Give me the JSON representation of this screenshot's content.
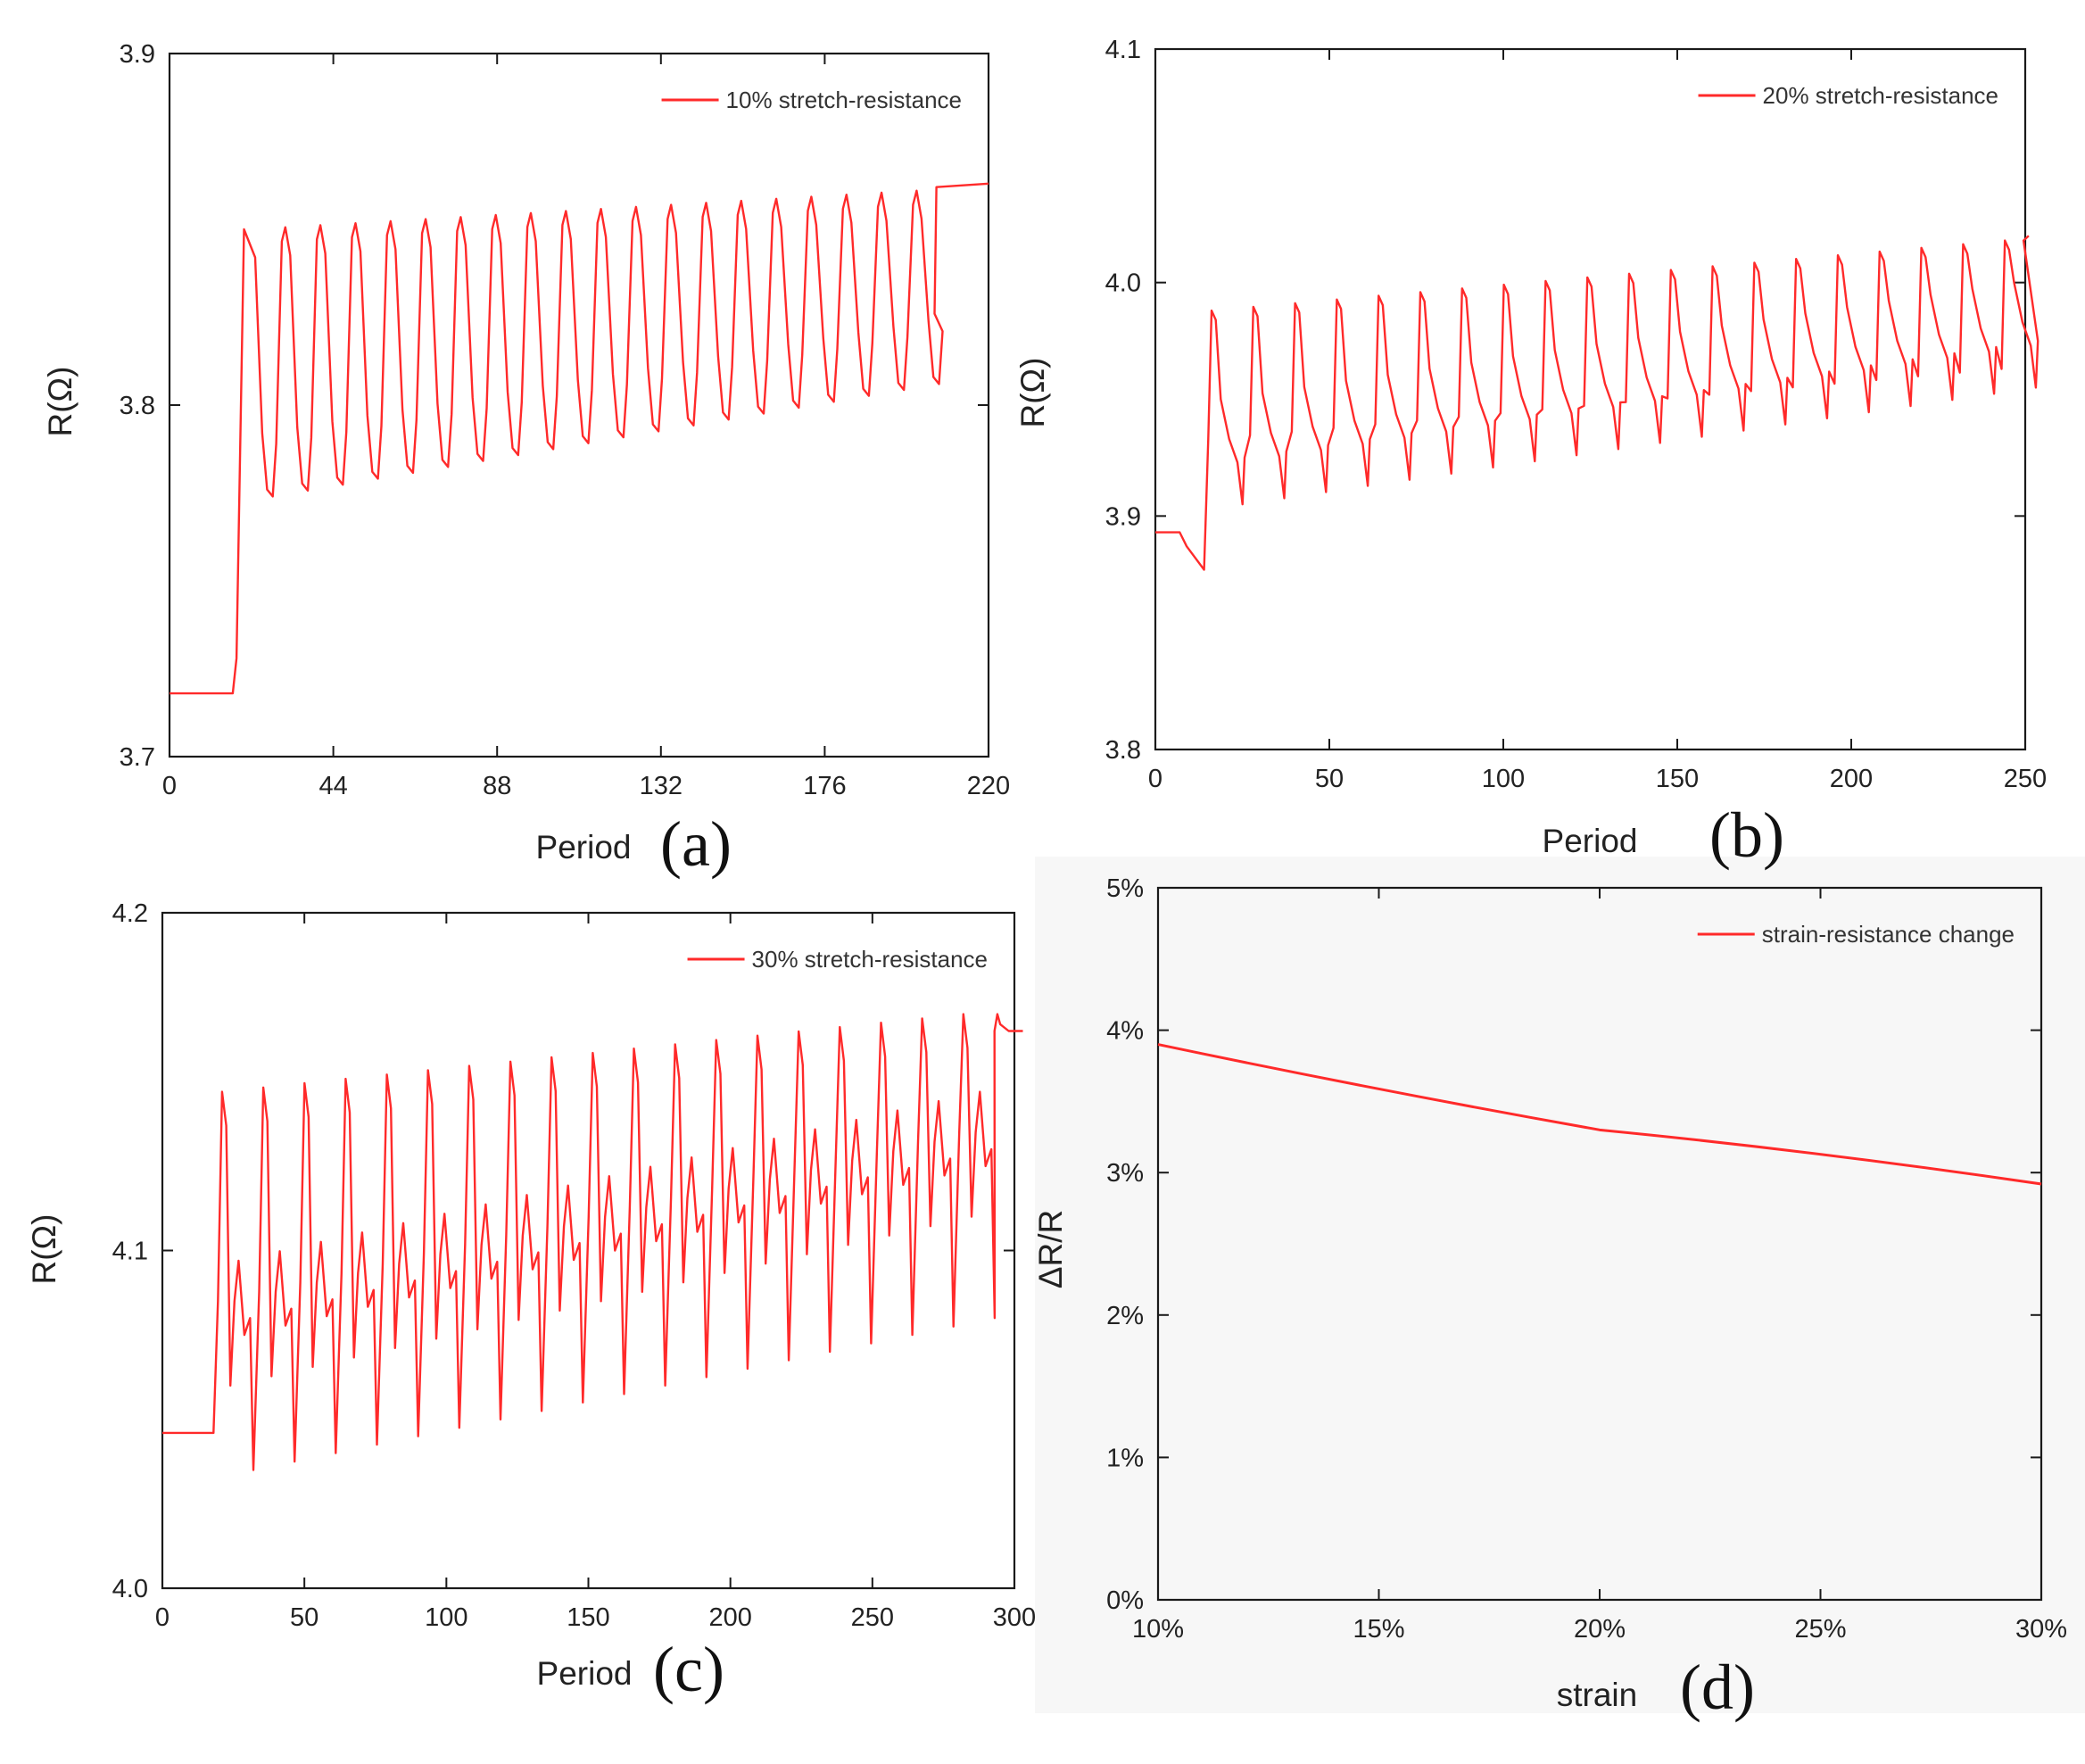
{
  "figure": {
    "accent_color": "#ff2a2a",
    "panels_text": [
      "(a)",
      "(b)",
      "(c)",
      "(d)"
    ]
  },
  "chart_data": [
    {
      "id": "a",
      "type": "line",
      "panel_label": "(a)",
      "xlabel": "Period",
      "ylabel": "R(Ω)",
      "xlim": [
        0,
        220
      ],
      "ylim": [
        3.7,
        3.9
      ],
      "xticks": [
        "0",
        "44",
        "88",
        "132",
        "176",
        "220"
      ],
      "yticks": [
        "3.7",
        "3.8",
        "3.9"
      ],
      "legend": "10% stretch-resistance",
      "legend_position": "top-right",
      "series": [
        {
          "name": "10% stretch-resistance",
          "color": "#ff2a2a",
          "signal": {
            "baseline": 3.718,
            "baseline_until": 17,
            "rise_end": 20,
            "cycles_start": 20,
            "period": 9.42,
            "cycles": 20,
            "low_start": 3.774,
            "low_end": 3.806,
            "high_start": 3.85,
            "high_end": 3.861,
            "plateau_after": 206,
            "plateau_value": 3.862,
            "plateau_end_value": 3.863
          }
        }
      ]
    },
    {
      "id": "b",
      "type": "line",
      "panel_label": "(b)",
      "xlabel": "Period",
      "ylabel": "R(Ω)",
      "xlim": [
        0,
        250
      ],
      "ylim": [
        3.8,
        4.1
      ],
      "xticks": [
        "0",
        "50",
        "100",
        "150",
        "200",
        "250"
      ],
      "yticks": [
        "3.8",
        "3.9",
        "4.0",
        "4.1"
      ],
      "legend": "20% stretch-resistance",
      "legend_position": "top-right",
      "series": [
        {
          "name": "20% stretch-resistance",
          "color": "#ff2a2a",
          "signal": {
            "baseline": 3.893,
            "baseline_until": 7,
            "dip_value": 3.877,
            "dip_until": 14,
            "cycles_start": 14,
            "period": 12,
            "cycles": 20,
            "low_start": 3.905,
            "low_end": 3.955,
            "high_start": 3.988,
            "high_end": 4.018,
            "end_x": 251,
            "end_value": 4.02
          }
        }
      ]
    },
    {
      "id": "c",
      "type": "line",
      "panel_label": "(c)",
      "xlabel": "Period",
      "ylabel": "R(Ω)",
      "xlim": [
        0,
        300
      ],
      "ylim": [
        4.0,
        4.2
      ],
      "xticks": [
        "0",
        "50",
        "100",
        "150",
        "200",
        "250",
        "300"
      ],
      "yticks": [
        "4.0",
        "4.1",
        "4.2"
      ],
      "legend": "30% stretch-resistance",
      "legend_position": "top-right",
      "series": [
        {
          "name": "30% stretch-resistance",
          "color": "#ff2a2a",
          "signal": {
            "baseline": 4.046,
            "baseline_until": 18,
            "cycles_start": 19,
            "period": 14.5,
            "cycles": 19,
            "low_start": 4.035,
            "low_end": 4.08,
            "high_start": 4.147,
            "high_end": 4.17,
            "mid_start": 4.105,
            "mid_end": 4.155,
            "plateau_after": 295,
            "plateau_value": 4.165,
            "end_x": 303
          }
        }
      ]
    },
    {
      "id": "d",
      "type": "line",
      "panel_label": "(d)",
      "xlabel": "strain",
      "ylabel": "ΔR/R",
      "xlim": [
        10,
        30
      ],
      "ylim": [
        0,
        5
      ],
      "xticks": [
        "10%",
        "15%",
        "20%",
        "25%",
        "30%"
      ],
      "yticks": [
        "0%",
        "1%",
        "2%",
        "3%",
        "4%",
        "5%"
      ],
      "legend": "strain-resistance change",
      "legend_position": "top-right",
      "series": [
        {
          "name": "strain-resistance change",
          "color": "#ff2a2a",
          "x": [
            10,
            20,
            30
          ],
          "y": [
            3.9,
            3.3,
            2.92
          ]
        }
      ]
    }
  ]
}
